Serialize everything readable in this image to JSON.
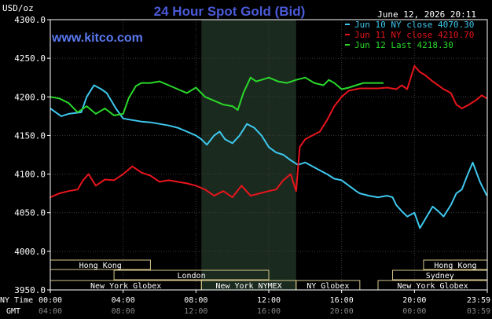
{
  "chart_data": {
    "type": "line",
    "title": "24 Hour Spot Gold (Bid)",
    "watermark": "www.kitco.com",
    "date_label": "June 12, 2026 20:11",
    "ylabel": "USD/oz",
    "ylim": [
      3950,
      4300
    ],
    "yticks": [
      "4300.0",
      "4250.0",
      "4200.0",
      "4150.0",
      "4100.0",
      "4050.0",
      "4000.0",
      "3950.0"
    ],
    "x_hours_range": [
      0,
      24
    ],
    "ny_time_label": "NY Time",
    "gmt_label": "GMT",
    "ny_time_ticks": [
      "00:00",
      "04:00",
      "08:00",
      "12:00",
      "16:00",
      "20:00",
      "23:59"
    ],
    "gmt_ticks": [
      "04:00",
      "08:00",
      "12:00",
      "16:00",
      "20:00",
      "00:00",
      "03:59"
    ],
    "shaded_interval_hours": [
      8.3,
      13.5
    ],
    "legend": [
      {
        "label": "Jun 10 NY close 4070.30",
        "color": "#3ec8ee"
      },
      {
        "label": "Jun 11 NY close 4210.70",
        "color": "#e8141c"
      },
      {
        "label": "Jun 12 Last 4218.30",
        "color": "#2ad82a"
      }
    ],
    "series": [
      {
        "name": "Jun 10 NY close 4070.30",
        "color": "#3ec8ee",
        "x": [
          0,
          0.6,
          1,
          1.7,
          2,
          2.4,
          2.8,
          3.1,
          3.6,
          4,
          4.5,
          5,
          5.5,
          6,
          6.5,
          7,
          7.5,
          8,
          8.3,
          8.6,
          9,
          9.3,
          9.6,
          10,
          10.4,
          10.8,
          11.2,
          11.6,
          12,
          12.4,
          12.8,
          13.2,
          13.6,
          14,
          14.4,
          14.8,
          15.2,
          15.6,
          16,
          16.4,
          16.8,
          17,
          17.5,
          18,
          18.5,
          18.8,
          19,
          19.3,
          19.6,
          20,
          20.3,
          20.6,
          21,
          21.3,
          21.6,
          22,
          22.3,
          22.6,
          22.9,
          23.2,
          23.6,
          23.98
        ],
        "y": [
          4185,
          4175,
          4178,
          4180,
          4200,
          4215,
          4210,
          4205,
          4185,
          4172,
          4170,
          4168,
          4167,
          4165,
          4163,
          4160,
          4155,
          4150,
          4145,
          4138,
          4150,
          4155,
          4145,
          4140,
          4150,
          4165,
          4160,
          4150,
          4135,
          4128,
          4125,
          4118,
          4112,
          4115,
          4110,
          4105,
          4100,
          4094,
          4092,
          4085,
          4078,
          4075,
          4072,
          4070,
          4072,
          4070,
          4060,
          4052,
          4045,
          4050,
          4030,
          4042,
          4058,
          4052,
          4045,
          4060,
          4075,
          4080,
          4098,
          4115,
          4090,
          4072
        ]
      },
      {
        "name": "Jun 11 NY close 4210.70",
        "color": "#e8141c",
        "x": [
          0,
          0.5,
          1,
          1.5,
          1.8,
          2.1,
          2.5,
          3,
          3.5,
          4,
          4.5,
          5,
          5.5,
          6,
          6.5,
          7,
          7.5,
          8,
          8.5,
          9,
          9.5,
          10,
          10.5,
          11,
          11.5,
          12,
          12.4,
          12.8,
          13.2,
          13.5,
          13.7,
          14,
          14.4,
          14.8,
          15.2,
          15.6,
          16,
          16.4,
          16.8,
          17,
          17.5,
          18,
          18.5,
          19,
          19.3,
          19.6,
          20,
          20.3,
          20.6,
          21,
          21.3,
          21.6,
          22,
          22.3,
          22.6,
          23,
          23.4,
          23.7,
          23.98
        ],
        "y": [
          4070,
          4075,
          4078,
          4080,
          4092,
          4100,
          4085,
          4093,
          4092,
          4100,
          4110,
          4102,
          4098,
          4090,
          4092,
          4090,
          4088,
          4085,
          4080,
          4072,
          4078,
          4070,
          4085,
          4072,
          4075,
          4078,
          4080,
          4092,
          4100,
          4078,
          4135,
          4145,
          4150,
          4155,
          4170,
          4188,
          4200,
          4208,
          4210,
          4211,
          4211,
          4211,
          4212,
          4210,
          4215,
          4210,
          4240,
          4232,
          4228,
          4220,
          4215,
          4210,
          4205,
          4190,
          4185,
          4190,
          4196,
          4202,
          4198
        ]
      },
      {
        "name": "Jun 12 Last 4218.30",
        "color": "#2ad82a",
        "x": [
          0,
          0.5,
          1,
          1.5,
          2,
          2.5,
          3,
          3.5,
          4,
          4.3,
          4.7,
          5,
          5.5,
          6,
          6.5,
          7,
          7.5,
          8,
          8.5,
          9,
          9.5,
          10,
          10.3,
          10.6,
          11,
          11.3,
          11.6,
          12,
          12.5,
          13,
          13.5,
          14,
          14.5,
          15,
          15.3,
          15.6,
          16,
          16.4,
          16.8,
          17.2,
          17.6,
          18,
          18.3
        ],
        "y": [
          4200,
          4198,
          4192,
          4180,
          4188,
          4178,
          4185,
          4176,
          4178,
          4198,
          4214,
          4218,
          4218,
          4220,
          4215,
          4210,
          4205,
          4212,
          4200,
          4195,
          4190,
          4188,
          4183,
          4205,
          4225,
          4220,
          4222,
          4225,
          4220,
          4218,
          4222,
          4225,
          4218,
          4215,
          4222,
          4218,
          4210,
          4212,
          4215,
          4218,
          4218,
          4218,
          4218
        ]
      }
    ],
    "sessions": [
      {
        "label": "Hong Kong",
        "start": 0,
        "end": 5.5,
        "row": 0
      },
      {
        "label": "London",
        "start": 3.5,
        "end": 12,
        "row": 1
      },
      {
        "label": "New York Globex",
        "start": 0,
        "end": 8.3,
        "row": 2
      },
      {
        "label": "New York NYMEX",
        "start": 8.3,
        "end": 13.5,
        "row": 2
      },
      {
        "label": "NY Globex",
        "start": 13.5,
        "end": 17,
        "row": 2
      },
      {
        "label": "Hong Kong",
        "start": 20.5,
        "end": 24,
        "row": 0
      },
      {
        "label": "Sydney",
        "start": 18.8,
        "end": 24,
        "row": 1
      },
      {
        "label": "New York Globex",
        "start": 18,
        "end": 24,
        "row": 2
      }
    ]
  }
}
